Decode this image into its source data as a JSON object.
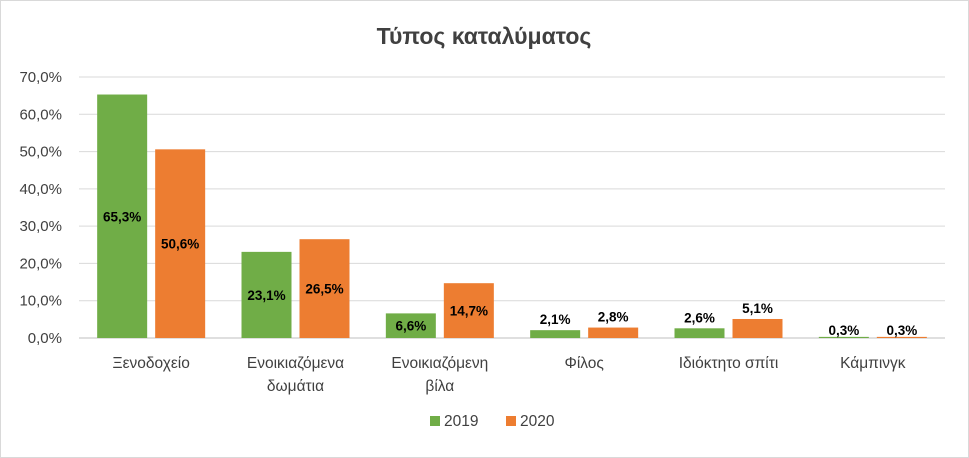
{
  "chart_data": {
    "type": "bar",
    "title": "Τύπος καταλύματος",
    "categories": [
      [
        "Ξενοδοχείο"
      ],
      [
        "Ενοικιαζόμενα",
        "δωμάτια"
      ],
      [
        "Ενοικιαζόμενη",
        "βίλα"
      ],
      [
        "Φίλος"
      ],
      [
        "Ιδιόκτητο σπίτι"
      ],
      [
        "Κάμπινγκ"
      ]
    ],
    "series": [
      {
        "name": "2019",
        "color": "#70ad47",
        "values": [
          65.3,
          23.1,
          6.6,
          2.1,
          2.6,
          0.3
        ],
        "labels": [
          "65,3%",
          "23,1%",
          "6,6%",
          "2,1%",
          "2,6%",
          "0,3%"
        ]
      },
      {
        "name": "2020",
        "color": "#ed7d31",
        "values": [
          50.6,
          26.5,
          14.7,
          2.8,
          5.1,
          0.3
        ],
        "labels": [
          "50,6%",
          "26,5%",
          "14,7%",
          "2,8%",
          "5,1%",
          "0,3%"
        ]
      }
    ],
    "ylim": [
      0,
      70
    ],
    "yticks": [
      0,
      10,
      20,
      30,
      40,
      50,
      60,
      70
    ],
    "ytick_labels": [
      "0,0%",
      "10,0%",
      "20,0%",
      "30,0%",
      "40,0%",
      "50,0%",
      "60,0%",
      "70,0%"
    ],
    "grid": true,
    "legend_position": "bottom",
    "xlabel": "",
    "ylabel": ""
  }
}
